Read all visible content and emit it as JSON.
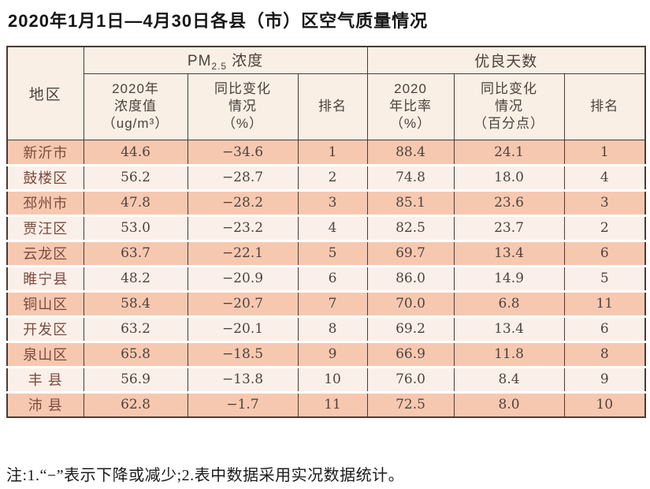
{
  "page": {
    "title": "2020年1月1日—4月30日各县（市）区空气质量情况",
    "note": "注:1.“−”表示下降或减少;2.表中数据采用实况数据统计。"
  },
  "table": {
    "region_header": "地区",
    "groups": {
      "pm": {
        "main": "PM",
        "sub": "2.5",
        "rest": "浓度"
      },
      "good_days": "优良天数"
    },
    "subheaders": {
      "pm_value": [
        "2020年",
        "浓度值",
        "（ug/m³）"
      ],
      "pm_change": [
        "同比变化",
        "情况",
        "（%）"
      ],
      "pm_rank": "排名",
      "good_ratio": [
        "2020",
        "年比率",
        "（%）"
      ],
      "good_change": [
        "同比变化",
        "情况",
        "（百分点）"
      ],
      "good_rank": "排名"
    },
    "rows": [
      {
        "region": "新沂市",
        "pm_value": "44.6",
        "pm_change": "−34.6",
        "pm_rank": "1",
        "good_ratio": "88.4",
        "good_change": "24.1",
        "good_rank": "1"
      },
      {
        "region": "鼓楼区",
        "pm_value": "56.2",
        "pm_change": "−28.7",
        "pm_rank": "2",
        "good_ratio": "74.8",
        "good_change": "18.0",
        "good_rank": "4"
      },
      {
        "region": "邳州市",
        "pm_value": "47.8",
        "pm_change": "−28.2",
        "pm_rank": "3",
        "good_ratio": "85.1",
        "good_change": "23.6",
        "good_rank": "3"
      },
      {
        "region": "贾汪区",
        "pm_value": "53.0",
        "pm_change": "−23.2",
        "pm_rank": "4",
        "good_ratio": "82.5",
        "good_change": "23.7",
        "good_rank": "2"
      },
      {
        "region": "云龙区",
        "pm_value": "63.7",
        "pm_change": "−22.1",
        "pm_rank": "5",
        "good_ratio": "69.7",
        "good_change": "13.4",
        "good_rank": "6"
      },
      {
        "region": "睢宁县",
        "pm_value": "48.2",
        "pm_change": "−20.9",
        "pm_rank": "6",
        "good_ratio": "86.0",
        "good_change": "14.9",
        "good_rank": "5"
      },
      {
        "region": "铜山区",
        "pm_value": "58.4",
        "pm_change": "−20.7",
        "pm_rank": "7",
        "good_ratio": "70.0",
        "good_change": "6.8",
        "good_rank": "11"
      },
      {
        "region": "开发区",
        "pm_value": "63.2",
        "pm_change": "−20.1",
        "pm_rank": "8",
        "good_ratio": "69.2",
        "good_change": "13.4",
        "good_rank": "6"
      },
      {
        "region": "泉山区",
        "pm_value": "65.8",
        "pm_change": "−18.5",
        "pm_rank": "9",
        "good_ratio": "66.9",
        "good_change": "11.8",
        "good_rank": "8"
      },
      {
        "region": "丰 县",
        "pm_value": "56.9",
        "pm_change": "−13.8",
        "pm_rank": "10",
        "good_ratio": "76.0",
        "good_change": "8.4",
        "good_rank": "9"
      },
      {
        "region": "沛 县",
        "pm_value": "62.8",
        "pm_change": "−1.7",
        "pm_rank": "11",
        "good_ratio": "72.5",
        "good_change": "8.0",
        "good_rank": "10"
      }
    ]
  },
  "colors": {
    "row_odd": "#f7c8b0",
    "row_even": "#fbf0e9",
    "header_bg": "#f9efe5",
    "border": "#4c3a33",
    "region_text": "#7c4a3d",
    "value_text": "#4e443e",
    "header_text": "#4b423b",
    "title_text": "#161616"
  }
}
